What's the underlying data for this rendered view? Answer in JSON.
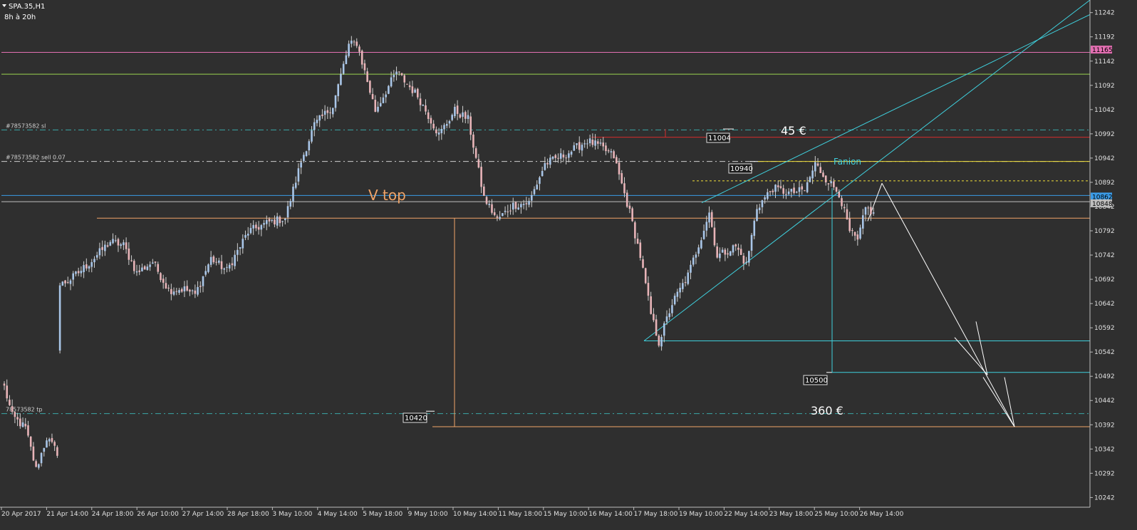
{
  "header": {
    "symbol": "SPA.35,H1",
    "subtitle": "8h à 20h"
  },
  "colors": {
    "bg": "#2f2f2f",
    "up": "#a9c6e8",
    "down": "#e8b4b8",
    "wick": "#d0d0d0"
  },
  "chart_data": {
    "type": "candlestick",
    "ylim": [
      10222,
      11268
    ],
    "yticks": [
      11242,
      11192,
      11142,
      11092,
      11042,
      10992,
      10942,
      10892,
      10842,
      10792,
      10742,
      10692,
      10642,
      10592,
      10542,
      10492,
      10442,
      10392,
      10342,
      10292,
      10242
    ],
    "xticks": [
      "20 Apr 2017",
      "21 Apr 14:00",
      "24 Apr 18:00",
      "26 Apr 10:00",
      "27 Apr 14:00",
      "28 Apr 18:00",
      "3 May 10:00",
      "4 May 14:00",
      "5 May 18:00",
      "9 May 10:00",
      "10 May 14:00",
      "11 May 18:00",
      "15 May 10:00",
      "16 May 14:00",
      "17 May 18:00",
      "19 May 10:00",
      "22 May 14:00",
      "23 May 18:00",
      "25 May 10:00",
      "26 May 14:00"
    ],
    "path_waypoints": [
      {
        "i": 0,
        "p": 10470
      },
      {
        "i": 3,
        "p": 10410
      },
      {
        "i": 8,
        "p": 10385
      },
      {
        "i": 12,
        "p": 10300
      },
      {
        "i": 16,
        "p": 10365
      },
      {
        "i": 20,
        "p": 10335
      },
      {
        "i": 21,
        "p": 10680
      },
      {
        "i": 25,
        "p": 10692
      },
      {
        "i": 32,
        "p": 10725
      },
      {
        "i": 40,
        "p": 10770
      },
      {
        "i": 45,
        "p": 10762
      },
      {
        "i": 50,
        "p": 10705
      },
      {
        "i": 56,
        "p": 10728
      },
      {
        "i": 62,
        "p": 10670
      },
      {
        "i": 68,
        "p": 10672
      },
      {
        "i": 72,
        "p": 10660
      },
      {
        "i": 78,
        "p": 10735
      },
      {
        "i": 84,
        "p": 10710
      },
      {
        "i": 92,
        "p": 10790
      },
      {
        "i": 100,
        "p": 10810
      },
      {
        "i": 106,
        "p": 10818
      },
      {
        "i": 112,
        "p": 10935
      },
      {
        "i": 117,
        "p": 11010
      },
      {
        "i": 124,
        "p": 11050
      },
      {
        "i": 130,
        "p": 11175
      },
      {
        "i": 133,
        "p": 11180
      },
      {
        "i": 140,
        "p": 11040
      },
      {
        "i": 148,
        "p": 11120
      },
      {
        "i": 156,
        "p": 11070
      },
      {
        "i": 164,
        "p": 10990
      },
      {
        "i": 170,
        "p": 11040
      },
      {
        "i": 175,
        "p": 11022
      },
      {
        "i": 181,
        "p": 10860
      },
      {
        "i": 186,
        "p": 10815
      },
      {
        "i": 192,
        "p": 10845
      },
      {
        "i": 198,
        "p": 10850
      },
      {
        "i": 204,
        "p": 10930
      },
      {
        "i": 212,
        "p": 10950
      },
      {
        "i": 220,
        "p": 10978
      },
      {
        "i": 225,
        "p": 10965
      },
      {
        "i": 230,
        "p": 10945
      },
      {
        "i": 236,
        "p": 10830
      },
      {
        "i": 240,
        "p": 10740
      },
      {
        "i": 244,
        "p": 10620
      },
      {
        "i": 247,
        "p": 10562
      },
      {
        "i": 252,
        "p": 10642
      },
      {
        "i": 258,
        "p": 10700
      },
      {
        "i": 263,
        "p": 10780
      },
      {
        "i": 266,
        "p": 10830
      },
      {
        "i": 269,
        "p": 10740
      },
      {
        "i": 276,
        "p": 10760
      },
      {
        "i": 280,
        "p": 10722
      },
      {
        "i": 284,
        "p": 10840
      },
      {
        "i": 290,
        "p": 10880
      },
      {
        "i": 296,
        "p": 10870
      },
      {
        "i": 302,
        "p": 10875
      },
      {
        "i": 306,
        "p": 10930
      },
      {
        "i": 310,
        "p": 10900
      },
      {
        "i": 315,
        "p": 10870
      },
      {
        "i": 319,
        "p": 10790
      },
      {
        "i": 322,
        "p": 10770
      },
      {
        "i": 325,
        "p": 10838
      },
      {
        "i": 328,
        "p": 10830
      }
    ],
    "hlines": [
      {
        "price": 11160,
        "color": "#e36fb2",
        "label": ""
      },
      {
        "price": 11115,
        "color": "#9bd54f",
        "label": ""
      },
      {
        "price": 11000,
        "color": "#3aa7a7",
        "dash": "8,4,2,4",
        "label": "#78573582 sl"
      },
      {
        "price": 10935,
        "color": "#cfcfcf",
        "dash": "8,4,2,4",
        "label": "#78573582 sell 0.07"
      },
      {
        "price": 10865,
        "color": "#3b9be6",
        "label": ""
      },
      {
        "price": 10852,
        "color": "#bfbfbf",
        "label": ""
      },
      {
        "price": 10415,
        "color": "#3aa7a7",
        "dash": "8,4,2,4",
        "label": "78573582 tp"
      }
    ],
    "price_tags": [
      {
        "price": 11165,
        "text": "11165",
        "bg": "#e36fb2",
        "fg": "#000000"
      },
      {
        "price": 10862,
        "text": "10862",
        "bg": "#3b9be6",
        "fg": "#000000"
      },
      {
        "price": 10848,
        "text": "10848",
        "bg": "#bfbfbf",
        "fg": "#000000"
      }
    ],
    "annotations": {
      "v_top": "V top",
      "fanion": "Fanion",
      "gain_top": "45 €",
      "gain_bottom": "360 €",
      "label_11004": "11004",
      "label_10940": "10940",
      "label_10500": "10500",
      "label_10420": "10420"
    }
  }
}
